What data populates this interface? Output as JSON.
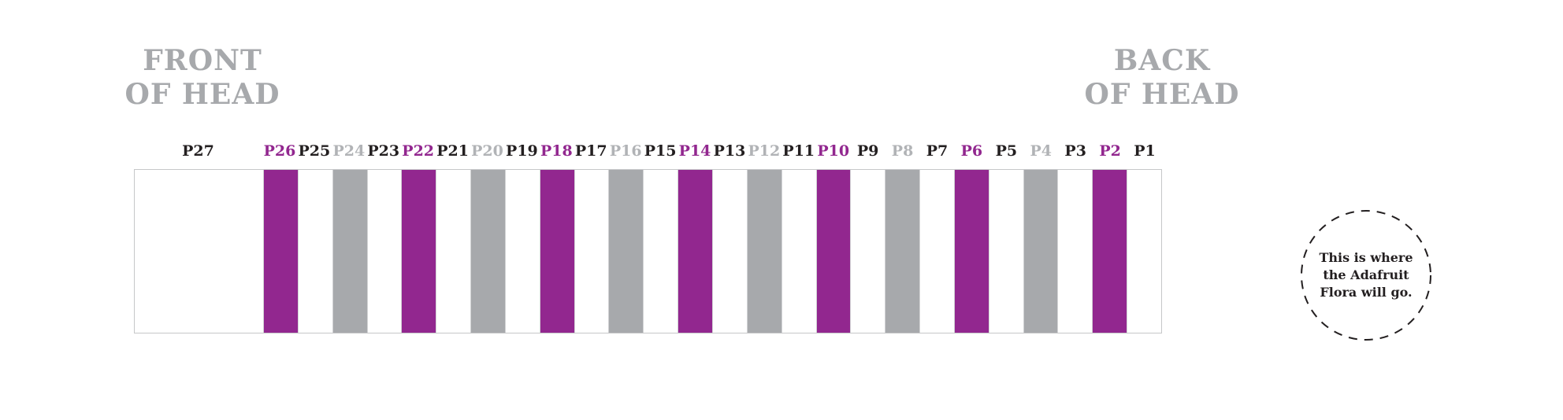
{
  "colors": {
    "purple": "#92278f",
    "gray": "#a7a9ac",
    "gray-label": "#b1b3b6",
    "heading-gray": "#a7a9ac",
    "ink": "#231f20",
    "bar-border": "#c6c7c9",
    "separator": "#d2d3d5"
  },
  "headings": {
    "front": "FRONT\nOF HEAD",
    "back": "BACK\nOF HEAD"
  },
  "ribbon": {
    "segments": [
      {
        "label": "P27",
        "role": "white",
        "wide": true
      },
      {
        "label": "P26",
        "role": "purple"
      },
      {
        "label": "P25",
        "role": "white"
      },
      {
        "label": "P24",
        "role": "gray"
      },
      {
        "label": "P23",
        "role": "white"
      },
      {
        "label": "P22",
        "role": "purple"
      },
      {
        "label": "P21",
        "role": "white"
      },
      {
        "label": "P20",
        "role": "gray"
      },
      {
        "label": "P19",
        "role": "white"
      },
      {
        "label": "P18",
        "role": "purple"
      },
      {
        "label": "P17",
        "role": "white"
      },
      {
        "label": "P16",
        "role": "gray"
      },
      {
        "label": "P15",
        "role": "white"
      },
      {
        "label": "P14",
        "role": "purple"
      },
      {
        "label": "P13",
        "role": "white"
      },
      {
        "label": "P12",
        "role": "gray"
      },
      {
        "label": "P11",
        "role": "white"
      },
      {
        "label": "P10",
        "role": "purple"
      },
      {
        "label": "P9",
        "role": "white"
      },
      {
        "label": "P8",
        "role": "gray"
      },
      {
        "label": "P7",
        "role": "white"
      },
      {
        "label": "P6",
        "role": "purple"
      },
      {
        "label": "P5",
        "role": "white"
      },
      {
        "label": "P4",
        "role": "gray"
      },
      {
        "label": "P3",
        "role": "white"
      },
      {
        "label": "P2",
        "role": "purple"
      },
      {
        "label": "P1",
        "role": "white"
      }
    ]
  },
  "note": {
    "text": "This is where\nthe Adafruit\nFlora will go."
  }
}
